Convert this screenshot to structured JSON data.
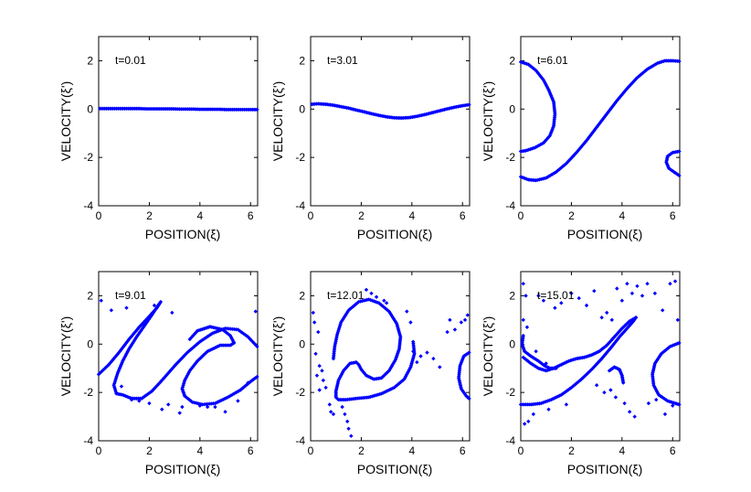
{
  "figure": {
    "xlabel": "POSITION(ξ)",
    "ylabel": "VELOCITY(ξ')",
    "marker_color": "#0000ff",
    "panel_title_placement": "top-left inside axes"
  },
  "chart_data": [
    {
      "type": "scatter",
      "title": "t=0.01",
      "xlabel": "POSITION(ξ)",
      "ylabel": "VELOCITY(ξ')",
      "xlim": [
        0,
        6.28
      ],
      "ylim": [
        -4,
        3
      ],
      "xticks": [
        0,
        2,
        4,
        6
      ],
      "yticks": [
        -4,
        -2,
        0,
        2
      ],
      "series": [
        {
          "style": "dense",
          "x": [
            0.05,
            0.31,
            0.57,
            0.84,
            1.1,
            1.36,
            1.62,
            1.88,
            2.15,
            2.41,
            2.67,
            2.93,
            3.19,
            3.46,
            3.72,
            3.98,
            4.24,
            4.5,
            4.77,
            5.03,
            5.29,
            5.55,
            5.82,
            6.08,
            6.26
          ],
          "y": [
            0.02,
            0.02,
            0.02,
            0.02,
            0.02,
            0.02,
            0.02,
            0.01,
            0.01,
            0.01,
            0.01,
            0.01,
            0.0,
            0.0,
            0.0,
            -0.01,
            -0.01,
            -0.01,
            -0.01,
            -0.02,
            -0.02,
            -0.02,
            -0.02,
            -0.02,
            -0.02
          ]
        }
      ]
    },
    {
      "type": "scatter",
      "title": "t=3.01",
      "xlabel": "POSITION(ξ)",
      "ylabel": "VELOCITY(ξ')",
      "xlim": [
        0,
        6.28
      ],
      "ylim": [
        -4,
        3
      ],
      "xticks": [
        0,
        2,
        4,
        6
      ],
      "yticks": [
        -4,
        -2,
        0,
        2
      ],
      "series": [
        {
          "style": "dense",
          "x": [
            0.05,
            0.3,
            0.6,
            0.9,
            1.2,
            1.5,
            1.8,
            2.1,
            2.4,
            2.7,
            3.0,
            3.3,
            3.6,
            3.9,
            4.2,
            4.5,
            4.8,
            5.1,
            5.4,
            5.7,
            6.0,
            6.26
          ],
          "y": [
            0.2,
            0.22,
            0.2,
            0.16,
            0.1,
            0.04,
            -0.04,
            -0.11,
            -0.19,
            -0.26,
            -0.32,
            -0.36,
            -0.37,
            -0.35,
            -0.3,
            -0.23,
            -0.15,
            -0.07,
            0.01,
            0.08,
            0.14,
            0.18
          ]
        }
      ]
    },
    {
      "type": "scatter",
      "title": "t=6.01",
      "xlabel": "POSITION(ξ)",
      "ylabel": "VELOCITY(ξ')",
      "xlim": [
        0,
        6.28
      ],
      "ylim": [
        -4,
        3
      ],
      "xticks": [
        0,
        2,
        4,
        6
      ],
      "yticks": [
        -4,
        -2,
        0,
        2
      ],
      "series": [
        {
          "style": "dense",
          "x": [
            0.0,
            0.3,
            0.6,
            0.9,
            1.1,
            1.3,
            1.35,
            1.3,
            1.15,
            0.9,
            0.55,
            0.2,
            0.0
          ],
          "y": [
            1.95,
            1.85,
            1.6,
            1.2,
            0.8,
            0.3,
            -0.2,
            -0.7,
            -1.1,
            -1.4,
            -1.6,
            -1.72,
            -1.75
          ]
        },
        {
          "style": "dense",
          "x": [
            0.0,
            0.3,
            0.6,
            1.0,
            1.4,
            1.8,
            2.2,
            2.6,
            3.0,
            3.4,
            3.8,
            4.2,
            4.6,
            5.0,
            5.4,
            5.7,
            6.0,
            6.26
          ],
          "y": [
            -2.8,
            -2.92,
            -2.95,
            -2.85,
            -2.6,
            -2.25,
            -1.8,
            -1.3,
            -0.75,
            -0.2,
            0.35,
            0.85,
            1.3,
            1.65,
            1.9,
            2.0,
            2.0,
            1.98
          ]
        },
        {
          "style": "dense",
          "x": [
            6.26,
            6.0,
            5.8,
            5.75,
            5.85,
            6.05,
            6.26
          ],
          "y": [
            -1.75,
            -1.8,
            -1.95,
            -2.2,
            -2.45,
            -2.6,
            -2.75
          ]
        }
      ]
    },
    {
      "type": "scatter",
      "title": "t=9.01",
      "xlabel": "POSITION(ξ)",
      "ylabel": "VELOCITY(ξ')",
      "xlim": [
        0,
        6.28
      ],
      "ylim": [
        -4,
        3
      ],
      "xticks": [
        0,
        2,
        4,
        6
      ],
      "yticks": [
        -4,
        -2,
        0,
        2
      ],
      "series": [
        {
          "style": "dense",
          "x": [
            0.0,
            0.4,
            0.8,
            1.2,
            1.6,
            2.0,
            2.3,
            2.45,
            2.35,
            2.1,
            1.8,
            1.5,
            1.2,
            0.95,
            0.75,
            0.6,
            0.7,
            0.95,
            1.3
          ],
          "y": [
            -1.25,
            -0.85,
            -0.35,
            0.2,
            0.7,
            1.15,
            1.5,
            1.75,
            1.6,
            1.2,
            0.75,
            0.3,
            -0.2,
            -0.7,
            -1.2,
            -1.7,
            -2.05,
            -2.1,
            -2.25
          ]
        },
        {
          "style": "dense",
          "x": [
            1.3,
            1.7,
            2.1,
            2.5,
            3.0,
            3.5,
            4.0,
            4.5,
            5.0,
            5.5,
            5.9,
            6.26
          ],
          "y": [
            -2.25,
            -2.25,
            -1.95,
            -1.5,
            -0.9,
            -0.35,
            0.1,
            0.45,
            0.65,
            0.6,
            0.3,
            -0.1
          ]
        },
        {
          "style": "dense",
          "x": [
            3.6,
            3.9,
            4.4,
            4.9,
            5.2,
            5.35,
            5.2,
            4.8,
            4.3,
            3.9,
            3.6,
            3.4,
            3.3,
            3.4,
            3.7,
            4.1,
            4.6,
            5.1,
            5.6,
            6.0,
            6.26
          ],
          "y": [
            0.2,
            0.55,
            0.72,
            0.6,
            0.35,
            0.05,
            -0.05,
            -0.05,
            -0.3,
            -0.7,
            -1.1,
            -1.5,
            -1.85,
            -2.15,
            -2.4,
            -2.5,
            -2.45,
            -2.2,
            -1.9,
            -1.55,
            -1.35
          ]
        },
        {
          "style": "sparse",
          "x": [
            0.1,
            0.5,
            0.9,
            1.1,
            1.3,
            1.6,
            2.0,
            2.2,
            2.5,
            2.75,
            2.9,
            3.2,
            4.0,
            4.3,
            4.6,
            5.0,
            5.5,
            5.9,
            6.2,
            3.3
          ],
          "y": [
            1.8,
            1.4,
            -1.75,
            1.5,
            -2.3,
            -2.35,
            -2.45,
            1.6,
            -2.7,
            -2.5,
            1.3,
            -2.85,
            -2.55,
            -2.6,
            -2.6,
            -2.8,
            -2.35,
            -1.6,
            1.35,
            -2.6
          ]
        }
      ]
    },
    {
      "type": "scatter",
      "title": "t=12.01",
      "xlabel": "POSITION(ξ)",
      "ylabel": "VELOCITY(ξ')",
      "xlim": [
        0,
        6.28
      ],
      "ylim": [
        -4,
        3
      ],
      "xticks": [
        0,
        2,
        4,
        6
      ],
      "yticks": [
        -4,
        -2,
        0,
        2
      ],
      "series": [
        {
          "style": "dense",
          "x": [
            0.9,
            0.95,
            1.05,
            1.2,
            1.5,
            1.9,
            2.3,
            2.7,
            3.1,
            3.4,
            3.55,
            3.5,
            3.35,
            3.1,
            2.8,
            2.5,
            2.2,
            2.0,
            1.9,
            1.8,
            1.55,
            1.3,
            1.1,
            1.0,
            1.0,
            1.1,
            1.4,
            1.8,
            2.3,
            2.8,
            3.3,
            3.7,
            3.95,
            4.1,
            4.05
          ],
          "y": [
            -0.6,
            -0.1,
            0.4,
            0.9,
            1.4,
            1.75,
            1.85,
            1.7,
            1.35,
            0.85,
            0.3,
            -0.2,
            -0.65,
            -1.1,
            -1.4,
            -1.45,
            -1.3,
            -1.05,
            -0.85,
            -0.75,
            -0.8,
            -1.1,
            -1.5,
            -1.95,
            -2.2,
            -2.3,
            -2.3,
            -2.25,
            -2.2,
            -2.05,
            -1.8,
            -1.45,
            -0.95,
            -0.4,
            0.1
          ]
        },
        {
          "style": "dense",
          "x": [
            6.26,
            6.05,
            5.9,
            5.85,
            5.95,
            6.15,
            6.26
          ],
          "y": [
            -0.35,
            -0.5,
            -0.9,
            -1.4,
            -1.85,
            -2.15,
            -2.25
          ]
        },
        {
          "style": "sparse",
          "x": [
            0.1,
            0.15,
            0.3,
            0.35,
            0.45,
            0.5,
            0.6,
            0.75,
            0.8,
            0.9,
            0.2,
            0.25,
            0.35,
            1.25,
            1.35,
            1.45,
            1.5,
            1.6,
            2.2,
            2.4,
            2.6,
            2.9,
            3.0,
            3.8,
            3.95,
            4.05,
            4.2,
            4.35,
            4.6,
            4.85,
            5.1,
            5.4,
            5.5,
            5.7,
            5.95,
            6.1,
            6.2
          ],
          "y": [
            1.3,
            0.9,
            0.5,
            -0.9,
            -1.1,
            -1.5,
            -1.8,
            -2.5,
            -2.8,
            -2.9,
            -0.4,
            -1.3,
            -1.9,
            -2.6,
            -2.9,
            -3.2,
            -3.5,
            -3.8,
            2.25,
            2.1,
            1.95,
            1.8,
            1.7,
            1.35,
            0.9,
            -0.3,
            -0.75,
            -0.5,
            -0.35,
            -0.6,
            -0.95,
            0.5,
            1.0,
            0.6,
            0.9,
            1.0,
            1.2
          ]
        }
      ]
    },
    {
      "type": "scatter",
      "title": "t=15.01",
      "xlabel": "POSITION(ξ)",
      "ylabel": "VELOCITY(ξ')",
      "xlim": [
        0,
        6.28
      ],
      "ylim": [
        -4,
        3
      ],
      "xticks": [
        0,
        2,
        4,
        6
      ],
      "yticks": [
        -4,
        -2,
        0,
        2
      ],
      "series": [
        {
          "style": "dense",
          "x": [
            0.0,
            0.4,
            0.8,
            1.2,
            1.6,
            2.0,
            2.4,
            2.8,
            3.2,
            3.6,
            3.9,
            4.2,
            4.45,
            4.55
          ],
          "y": [
            -2.5,
            -2.5,
            -2.45,
            -2.3,
            -2.1,
            -1.8,
            -1.45,
            -1.05,
            -0.6,
            -0.1,
            0.3,
            0.65,
            0.95,
            1.1
          ]
        },
        {
          "style": "dense",
          "x": [
            4.55,
            4.3,
            4.0,
            3.7,
            3.4,
            3.1,
            2.8,
            2.5,
            2.2,
            1.9,
            1.6,
            1.3,
            1.0,
            0.7,
            0.4,
            0.1
          ],
          "y": [
            1.1,
            0.95,
            0.65,
            0.3,
            -0.05,
            -0.3,
            -0.45,
            -0.55,
            -0.6,
            -0.7,
            -0.85,
            -1.0,
            -1.1,
            -1.0,
            -0.8,
            -0.55
          ]
        },
        {
          "style": "dense",
          "x": [
            0.1,
            0.05,
            0.15,
            0.4,
            0.7,
            0.95,
            1.15,
            1.3,
            1.4
          ],
          "y": [
            0.35,
            0.0,
            -0.3,
            -0.5,
            -0.7,
            -0.9,
            -1.0,
            -1.0,
            -1.0
          ]
        },
        {
          "style": "dense",
          "x": [
            6.26,
            5.9,
            5.55,
            5.3,
            5.2,
            5.25,
            5.45,
            5.8,
            6.1,
            6.26
          ],
          "y": [
            0.05,
            -0.1,
            -0.4,
            -0.8,
            -1.25,
            -1.7,
            -2.1,
            -2.35,
            -2.45,
            -2.5
          ]
        },
        {
          "style": "dense",
          "x": [
            3.5,
            3.7,
            3.9,
            4.0,
            4.05
          ],
          "y": [
            -1.1,
            -0.95,
            -1.05,
            -1.3,
            -1.6
          ]
        },
        {
          "style": "sparse",
          "x": [
            0.1,
            0.2,
            0.15,
            0.3,
            0.5,
            0.7,
            0.9,
            1.1,
            1.35,
            1.6,
            1.8,
            2.0,
            2.3,
            2.6,
            2.9,
            3.2,
            3.4,
            3.6,
            3.8,
            4.0,
            4.2,
            4.4,
            4.6,
            4.8,
            5.0,
            5.3,
            5.6,
            5.9,
            6.1,
            6.2,
            0.1,
            0.25,
            0.6,
            1.0,
            3.0,
            3.3,
            3.55,
            3.75,
            4.1,
            4.3,
            4.5,
            5.05,
            5.35,
            5.7,
            6.0
          ],
          "y": [
            2.5,
            2.0,
            -3.3,
            -3.2,
            -2.9,
            2.0,
            1.8,
            -2.7,
            1.5,
            1.7,
            -2.5,
            2.1,
            1.9,
            1.6,
            2.2,
            1.1,
            1.3,
            1.0,
            2.3,
            1.8,
            2.5,
            2.1,
            2.4,
            2.0,
            2.5,
            2.1,
            1.4,
            2.5,
            2.6,
            1.0,
            1.0,
            0.7,
            -0.3,
            -0.8,
            -1.7,
            -2.0,
            -1.9,
            -2.2,
            -2.45,
            -2.8,
            -3.0,
            -2.45,
            -2.3,
            -2.9,
            -2.55
          ]
        }
      ]
    }
  ]
}
